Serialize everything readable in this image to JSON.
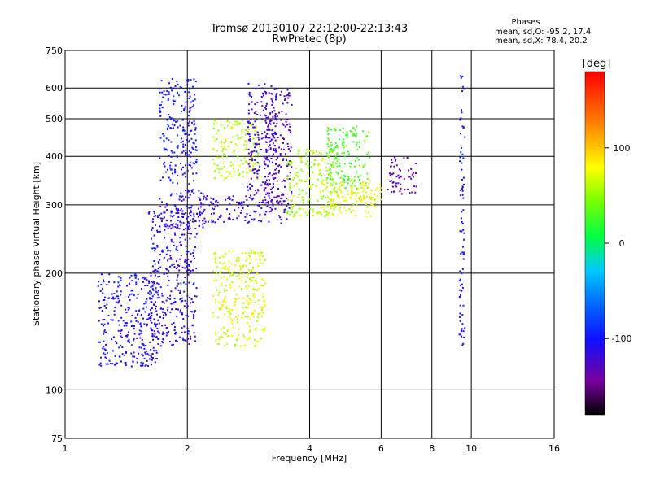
{
  "chart_data": {
    "type": "scatter",
    "title": "Tromsø 20130107 22:12:00-22:13:43",
    "subtitle": "RwPretec (8p)",
    "xlabel": "Frequency [MHz]",
    "ylabel": "Stationary phase Virtual Height [km]",
    "xscale": "log",
    "yscale": "log",
    "xlim": [
      1,
      16
    ],
    "ylim": [
      75,
      750
    ],
    "xticks": [
      1,
      2,
      4,
      6,
      8,
      10,
      16
    ],
    "xtick_labels": [
      "1",
      "2",
      "4",
      "6",
      "8",
      "10",
      "16"
    ],
    "yticks": [
      75,
      100,
      200,
      300,
      400,
      500,
      600,
      750
    ],
    "ytick_labels": [
      "75",
      "100",
      "200",
      "300",
      "400",
      "500",
      "600",
      "750"
    ],
    "grid": true,
    "stats": {
      "title": "Phases",
      "line1": "mean, sd,O: -95.2, 17.4",
      "line2": "mean, sd,X:  78.4, 20.2"
    },
    "colorbar": {
      "label": "[deg]",
      "range": [
        -180,
        180
      ],
      "ticks": [
        -100,
        0,
        100
      ],
      "tick_labels": [
        "-100",
        "0",
        "100"
      ]
    },
    "clusters": [
      {
        "f": [
          1.7,
          2.1
        ],
        "h": [
          340,
          640
        ],
        "phase": -100
      },
      {
        "f": [
          1.6,
          2.1
        ],
        "h": [
          130,
          290
        ],
        "phase": -110
      },
      {
        "f": [
          1.2,
          1.7
        ],
        "h": [
          115,
          200
        ],
        "phase": -105
      },
      {
        "f": [
          1.7,
          2.2
        ],
        "h": [
          260,
          330
        ],
        "phase": -110
      },
      {
        "f": [
          2.1,
          3.6
        ],
        "h": [
          270,
          320
        ],
        "phase": -120
      },
      {
        "f": [
          2.3,
          3.1
        ],
        "h": [
          130,
          230
        ],
        "phase": 70
      },
      {
        "f": [
          2.3,
          3.0
        ],
        "h": [
          350,
          500
        ],
        "phase": 60
      },
      {
        "f": [
          3.1,
          3.6
        ],
        "h": [
          300,
          600
        ],
        "phase": -130
      },
      {
        "f": [
          2.8,
          3.3
        ],
        "h": [
          320,
          620
        ],
        "phase": -120
      },
      {
        "f": [
          3.5,
          4.6
        ],
        "h": [
          280,
          420
        ],
        "phase": 55
      },
      {
        "f": [
          4.2,
          5.8
        ],
        "h": [
          280,
          350
        ],
        "phase": 70
      },
      {
        "f": [
          4.4,
          5.6
        ],
        "h": [
          330,
          480
        ],
        "phase": 30
      },
      {
        "f": [
          5.0,
          6.0
        ],
        "h": [
          310,
          340
        ],
        "phase": 80
      },
      {
        "f": [
          6.2,
          7.3
        ],
        "h": [
          320,
          400
        ],
        "phase": -135
      },
      {
        "f": [
          9.3,
          9.6
        ],
        "h": [
          130,
          660
        ],
        "phase": -105
      }
    ]
  }
}
